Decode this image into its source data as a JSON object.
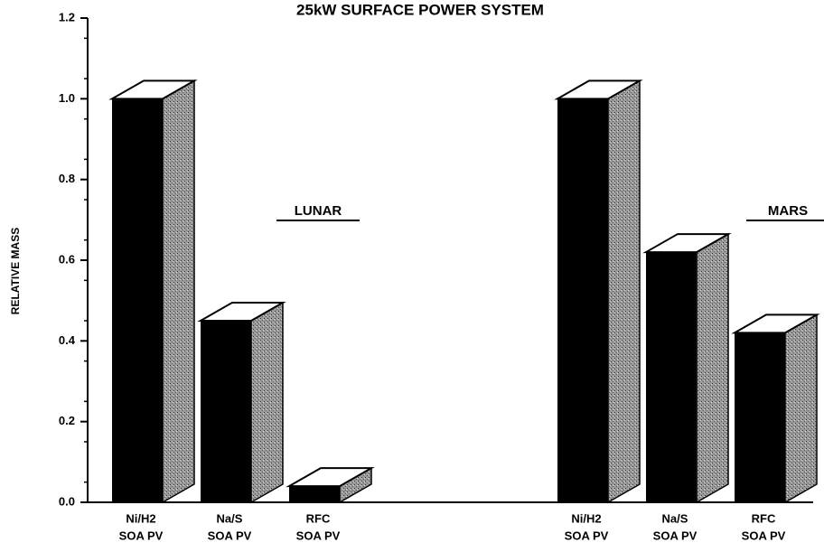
{
  "chart_data": {
    "type": "bar",
    "title": "25kW SURFACE POWER SYSTEM",
    "y_label": "RELATIVE MASS",
    "color": "#000000",
    "groups": [
      {
        "name": "LUNAR",
        "categories": [
          [
            "Ni/H2",
            "SOA PV"
          ],
          [
            "Na/S",
            "SOA PV"
          ],
          [
            "RFC",
            "SOA PV"
          ]
        ],
        "values": [
          1.0,
          0.45,
          0.04
        ]
      },
      {
        "name": "MARS",
        "categories": [
          [
            "Ni/H2",
            "SOA PV"
          ],
          [
            "Na/S",
            "SOA PV"
          ],
          [
            "RFC",
            "SOA PV"
          ]
        ],
        "values": [
          1.0,
          0.62,
          0.42
        ]
      }
    ],
    "ylim": [
      0,
      1.2
    ],
    "yticks": [
      {
        "value": 0,
        "label": "0.0"
      },
      0.2,
      0.4,
      0.6,
      0.8,
      {
        "value": 1,
        "label": "1.0"
      },
      1.2
    ]
  }
}
